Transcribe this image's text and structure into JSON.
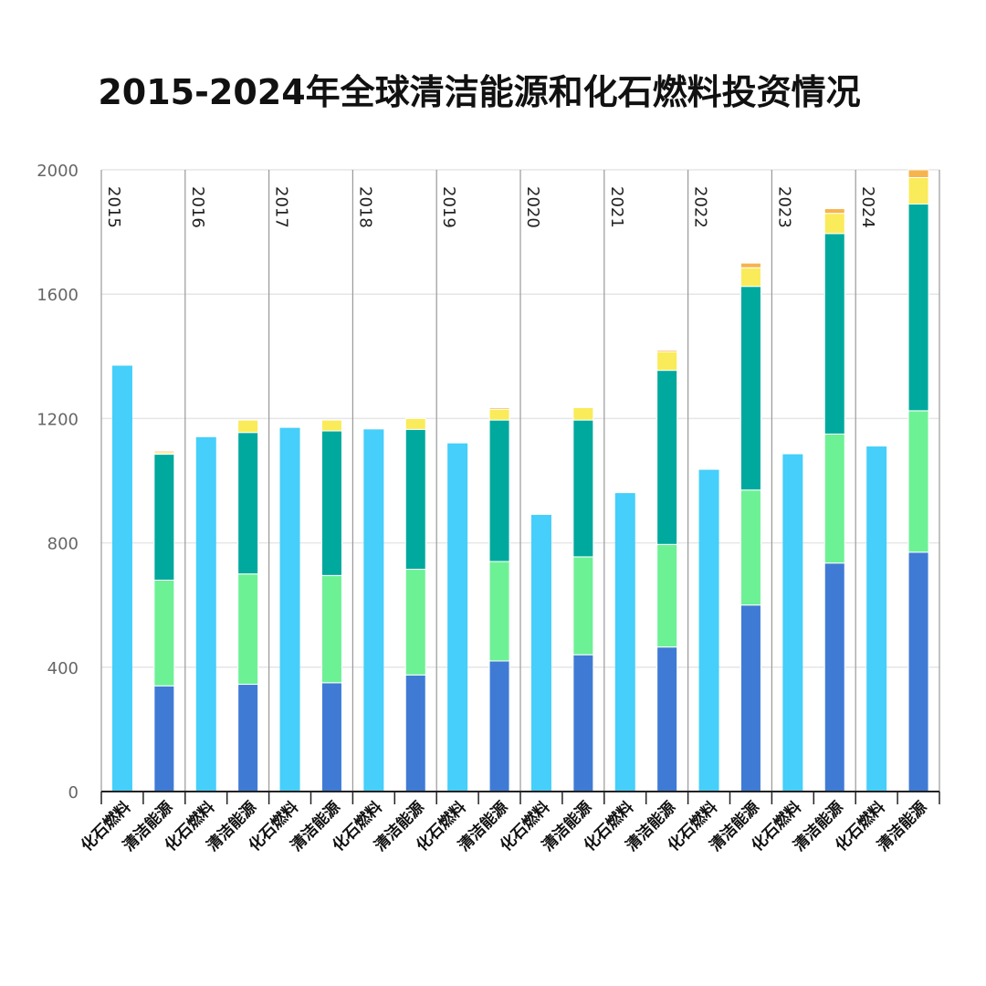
{
  "title": "2015-2024年全球清洁能源和化石燃料投资情况",
  "colors": {
    "fossil": "#45cffa",
    "clean_segments": [
      "#3f7bd5",
      "#6df195",
      "#00a99d",
      "#faeb5a",
      "#f6b44d"
    ],
    "grid": "#e6e6e6",
    "axis": "#222222",
    "separator": "#9a9a9a"
  },
  "chart_data": {
    "type": "bar",
    "stacked": true,
    "title": "2015-2024年全球清洁能源和化石燃料投资情况",
    "xlabel": "",
    "ylabel": "",
    "ylim": [
      0,
      2000
    ],
    "yticks": [
      0,
      400,
      800,
      1200,
      1600,
      2000
    ],
    "grid": true,
    "years": [
      "2015",
      "2016",
      "2017",
      "2018",
      "2019",
      "2020",
      "2021",
      "2022",
      "2023",
      "2024"
    ],
    "bar_labels": [
      "化石燃料",
      "清洁能源"
    ],
    "fossil": [
      1370,
      1140,
      1170,
      1165,
      1120,
      890,
      960,
      1035,
      1085,
      1110
    ],
    "clean_stack": [
      [
        340,
        340,
        405,
        5,
        5
      ],
      [
        345,
        355,
        455,
        40,
        0
      ],
      [
        350,
        345,
        465,
        35,
        0
      ],
      [
        375,
        340,
        450,
        35,
        0
      ],
      [
        420,
        320,
        455,
        35,
        5
      ],
      [
        440,
        315,
        440,
        40,
        0
      ],
      [
        465,
        330,
        560,
        60,
        5
      ],
      [
        600,
        370,
        655,
        60,
        15
      ],
      [
        735,
        415,
        645,
        65,
        15
      ],
      [
        770,
        455,
        665,
        85,
        25
      ]
    ]
  }
}
